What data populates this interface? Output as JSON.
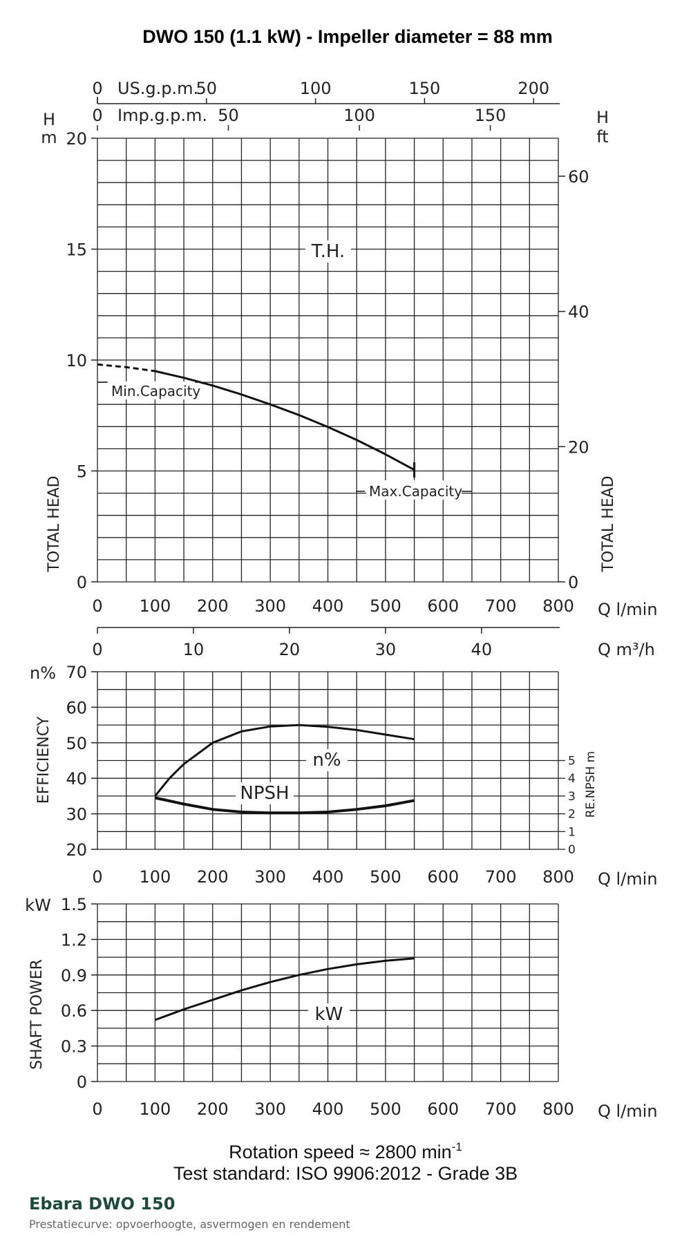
{
  "chart_data": {
    "title": "DWO 150 (1.1 kW) - Impeller diameter = 88 mm",
    "head_chart": {
      "type": "line",
      "ylabel": "TOTAL HEAD",
      "yunit": "H m",
      "y2label": "TOTAL HEAD",
      "y2unit_top": "H",
      "y2unit_bottom": "ft",
      "ylim": [
        0,
        20
      ],
      "y_ticks": [
        "0",
        "5",
        "10",
        "15",
        "20"
      ],
      "y2_ticks": [
        "0",
        "20",
        "40",
        "60"
      ],
      "xlim": [
        0,
        800
      ],
      "x_ticks": [
        "0",
        "100",
        "200",
        "300",
        "400",
        "500",
        "600",
        "700",
        "800"
      ],
      "xlabel": "Q l/min",
      "usgpm_label": "US.g.p.m.",
      "usgpm_ticks": [
        "0",
        "50",
        "100",
        "150",
        "200"
      ],
      "impgpm_label": "Imp.g.p.m.",
      "impgpm_ticks": [
        "0",
        "50",
        "100",
        "150"
      ],
      "m3h_label": "Q m³/h",
      "m3h_ticks": [
        "0",
        "10",
        "20",
        "30",
        "40"
      ],
      "curve_label": "T.H.",
      "min_capacity_label": "Min.Capacity",
      "max_capacity_label": "Max.Capacity",
      "series": [
        {
          "name": "T.H.",
          "x": [
            0,
            50,
            100,
            150,
            200,
            250,
            300,
            350,
            400,
            450,
            500,
            550
          ],
          "y": [
            9.8,
            9.68,
            9.5,
            9.2,
            8.85,
            8.45,
            8.0,
            7.52,
            6.98,
            6.4,
            5.75,
            5.05
          ]
        }
      ],
      "min_capacity_q": 100,
      "max_capacity_q": 550
    },
    "efficiency_chart": {
      "type": "line",
      "ylabel": "EFFICIENCY",
      "yunit": "n%",
      "ylim": [
        20,
        70
      ],
      "y_ticks": [
        "20",
        "30",
        "40",
        "50",
        "60",
        "70"
      ],
      "y2label": "RE.NPSH m",
      "y2_ticks": [
        "0",
        "1",
        "2",
        "3",
        "4",
        "5"
      ],
      "xlim": [
        0,
        800
      ],
      "x_ticks": [
        "0",
        "100",
        "200",
        "300",
        "400",
        "500",
        "600",
        "700",
        "800"
      ],
      "xlabel": "Q l/min",
      "eff_label": "n%",
      "npsh_label": "NPSH",
      "series": [
        {
          "name": "n%",
          "x": [
            100,
            125,
            150,
            200,
            250,
            300,
            350,
            400,
            450,
            500,
            550
          ],
          "y": [
            35,
            40,
            44,
            50,
            53.2,
            54.6,
            55,
            54.5,
            53.6,
            52.3,
            51
          ]
        },
        {
          "name": "NPSH",
          "x": [
            100,
            150,
            200,
            250,
            300,
            350,
            400,
            450,
            500,
            550
          ],
          "y": [
            2.9,
            2.55,
            2.25,
            2.1,
            2.05,
            2.05,
            2.1,
            2.25,
            2.45,
            2.75
          ]
        }
      ]
    },
    "power_chart": {
      "type": "line",
      "ylabel": "SHAFT POWER",
      "yunit": "kW",
      "ylim": [
        0,
        1.5
      ],
      "y_ticks": [
        "0",
        "0.3",
        "0.6",
        "0.9",
        "1.2",
        "1.5"
      ],
      "xlim": [
        0,
        800
      ],
      "x_ticks": [
        "0",
        "100",
        "200",
        "300",
        "400",
        "500",
        "600",
        "700",
        "800"
      ],
      "xlabel": "Q l/min",
      "curve_label": "kW",
      "series": [
        {
          "name": "kW",
          "x": [
            100,
            150,
            200,
            250,
            300,
            350,
            400,
            450,
            500,
            550
          ],
          "y": [
            0.52,
            0.61,
            0.69,
            0.77,
            0.84,
            0.9,
            0.95,
            0.99,
            1.02,
            1.04
          ]
        }
      ]
    },
    "rotation_speed_text": "Rotation speed ≈ 2800 min",
    "rotation_speed_exp": "-1",
    "test_standard": "Test standard: ISO 9906:2012 - Grade 3B"
  },
  "footer": {
    "brand_title": "Ebara DWO 150",
    "subtitle": "Prestatiecurve: opvoerhoogte, asvermogen en rendement"
  }
}
